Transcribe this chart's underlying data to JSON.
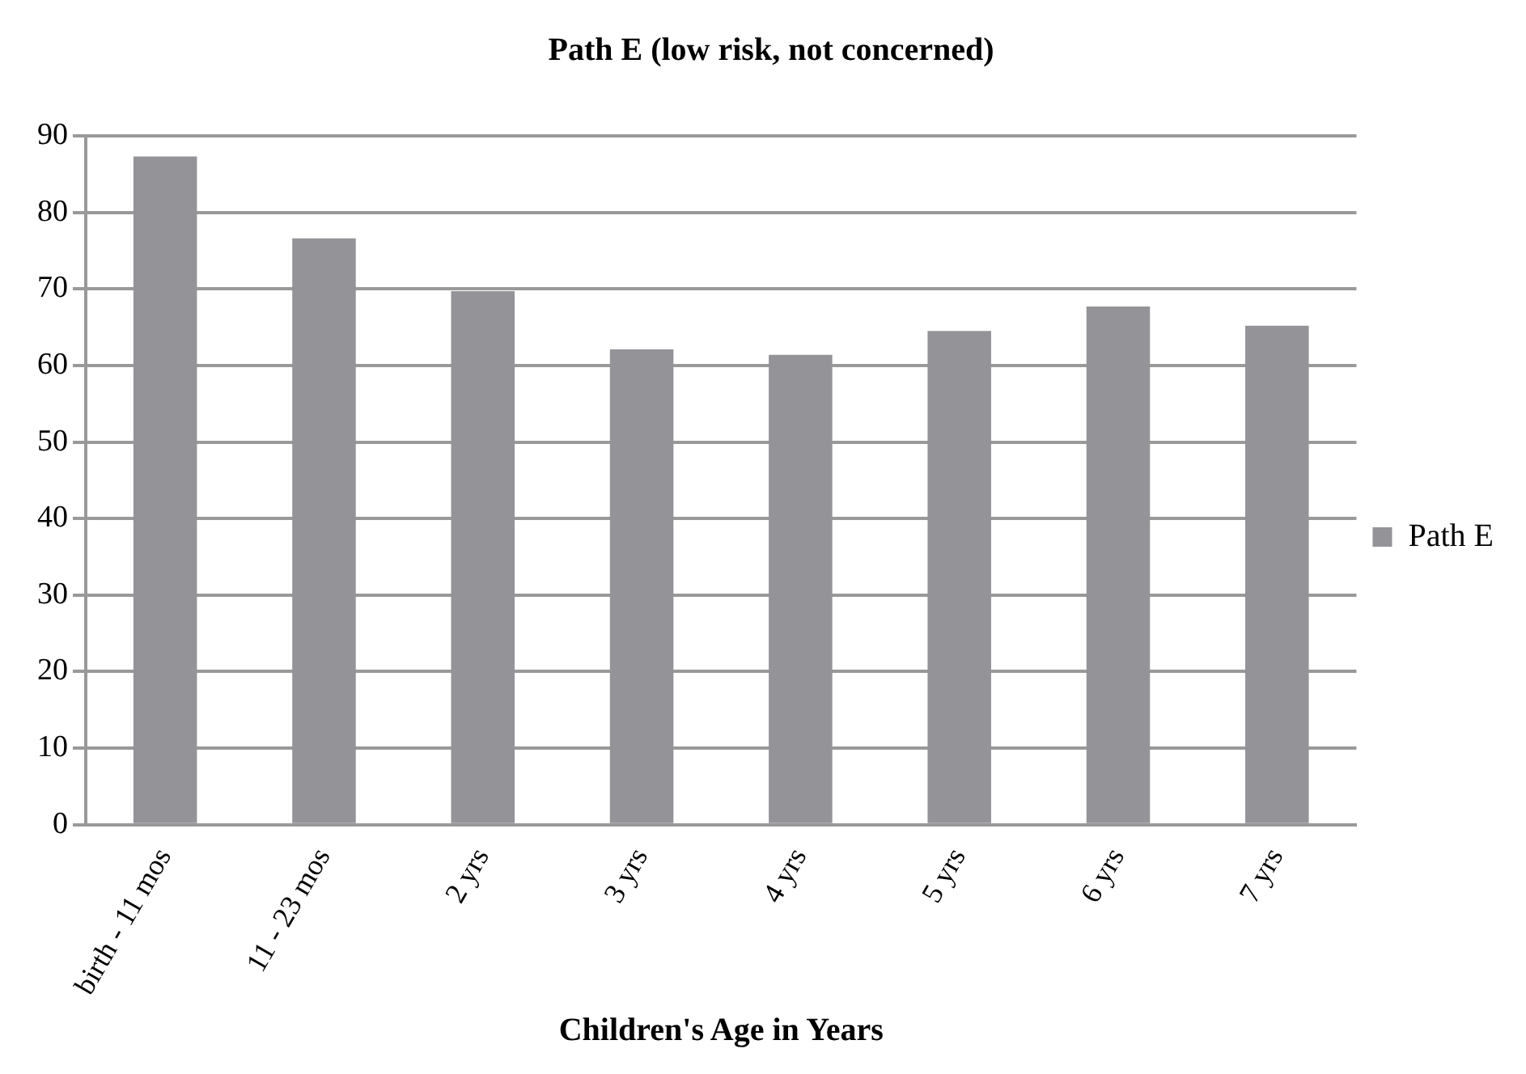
{
  "chart_data": {
    "type": "bar",
    "title": "Path E (low risk, not concerned)",
    "xlabel": "Children's Age in Years",
    "categories": [
      "birth - 11 mos",
      "11 - 23 mos",
      "2 yrs",
      "3 yrs",
      "4 yrs",
      "5 yrs",
      "6 yrs",
      "7 yrs"
    ],
    "series": [
      {
        "name": "Path E",
        "color": "#939398",
        "values": [
          87.3,
          76.6,
          69.7,
          62.1,
          61.4,
          64.5,
          67.7,
          65.2
        ]
      }
    ],
    "ylim": [
      0,
      90
    ],
    "yticks": [
      0,
      10,
      20,
      30,
      40,
      50,
      60,
      70,
      80,
      90
    ],
    "grid": "y",
    "legend": "right"
  }
}
